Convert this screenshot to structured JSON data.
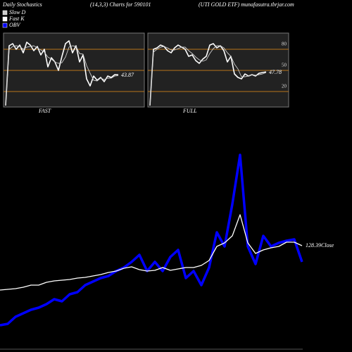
{
  "header": {
    "left": "Daily Stochastics",
    "center": "(14,3,3) Charts for 590101",
    "right": "(UTI GOLD ETF) munafasutra.tbrjar.com"
  },
  "chart_data": [
    {
      "type": "line",
      "label": "FAST",
      "ylim": [
        -2,
        103
      ],
      "yticks": [
        20,
        50,
        80
      ],
      "grid": true,
      "series": [
        {
          "name": "Fast K",
          "color": "#ffffff",
          "values": [
            0,
            85,
            88,
            80,
            86,
            75,
            90,
            86,
            78,
            84,
            72,
            80,
            55,
            68,
            62,
            50,
            70,
            88,
            92,
            75,
            85,
            62,
            72,
            38,
            28,
            42,
            36,
            40,
            34,
            42,
            40,
            44,
            43.87
          ]
        },
        {
          "name": "Slow D",
          "color": "#cccccc",
          "values": [
            0,
            80,
            84,
            85,
            84,
            80,
            83,
            84,
            85,
            82,
            79,
            76,
            69,
            66,
            62,
            60,
            61,
            69,
            83,
            85,
            84,
            74,
            73,
            57,
            46,
            36,
            35,
            39,
            37,
            39,
            39,
            42,
            42.6
          ]
        }
      ]
    },
    {
      "type": "line",
      "label": "FULL",
      "ylim": [
        -2,
        103
      ],
      "yticks": [
        20,
        50,
        80
      ],
      "grid": true,
      "series": [
        {
          "color": "#ffffff",
          "values": [
            0,
            80,
            82,
            86,
            84,
            78,
            75,
            82,
            86,
            83,
            80,
            70,
            72,
            64,
            60,
            66,
            70,
            86,
            88,
            82,
            85,
            78,
            62,
            70,
            45,
            40,
            38,
            45,
            42,
            44,
            42,
            46,
            47,
            47.78
          ]
        },
        {
          "color": "#cccccc",
          "values": [
            0,
            76,
            80,
            83,
            84,
            82,
            79,
            79,
            81,
            83,
            83,
            78,
            74,
            69,
            65,
            63,
            65,
            74,
            81,
            85,
            85,
            82,
            75,
            70,
            59,
            52,
            41,
            41,
            42,
            44,
            43,
            44,
            45,
            46.9
          ]
        }
      ]
    },
    {
      "type": "line",
      "annotation": "128.39Close",
      "ylim": [
        99.19,
        166.19
      ],
      "y2lim": [
        0,
        33500
      ],
      "series": [
        {
          "name": "OBV",
          "color": "#0000ff",
          "axis": "y2",
          "values": [
            3300,
            3500,
            4500,
            5000,
            5500,
            5800,
            6300,
            7000,
            6700,
            7700,
            8000,
            9000,
            9500,
            10000,
            10300,
            11000,
            11500,
            12300,
            13300,
            11000,
            12300,
            11000,
            13000,
            14000,
            10000,
            11000,
            9000,
            11500,
            16500,
            14500,
            20500,
            27500,
            14500,
            12000,
            16000,
            14500,
            15000,
            15300,
            15500,
            12300
          ]
        },
        {
          "color": "#ffffff",
          "values": [
            115.79,
            115.99,
            116.19,
            116.59,
            117.19,
            117.19,
            117.99,
            118.39,
            118.59,
            118.79,
            119.19,
            119.39,
            119.79,
            120.19,
            120.79,
            121.19,
            121.99,
            122.39,
            121.59,
            121.19,
            121.39,
            122.19,
            121.39,
            121.79,
            122.19,
            122.19,
            122.79,
            124.19,
            128.19,
            129.19,
            131.19,
            137.19,
            129.19,
            126.19,
            127.19,
            127.79,
            128.19,
            129.39,
            129.39,
            128.39
          ]
        }
      ]
    }
  ]
}
